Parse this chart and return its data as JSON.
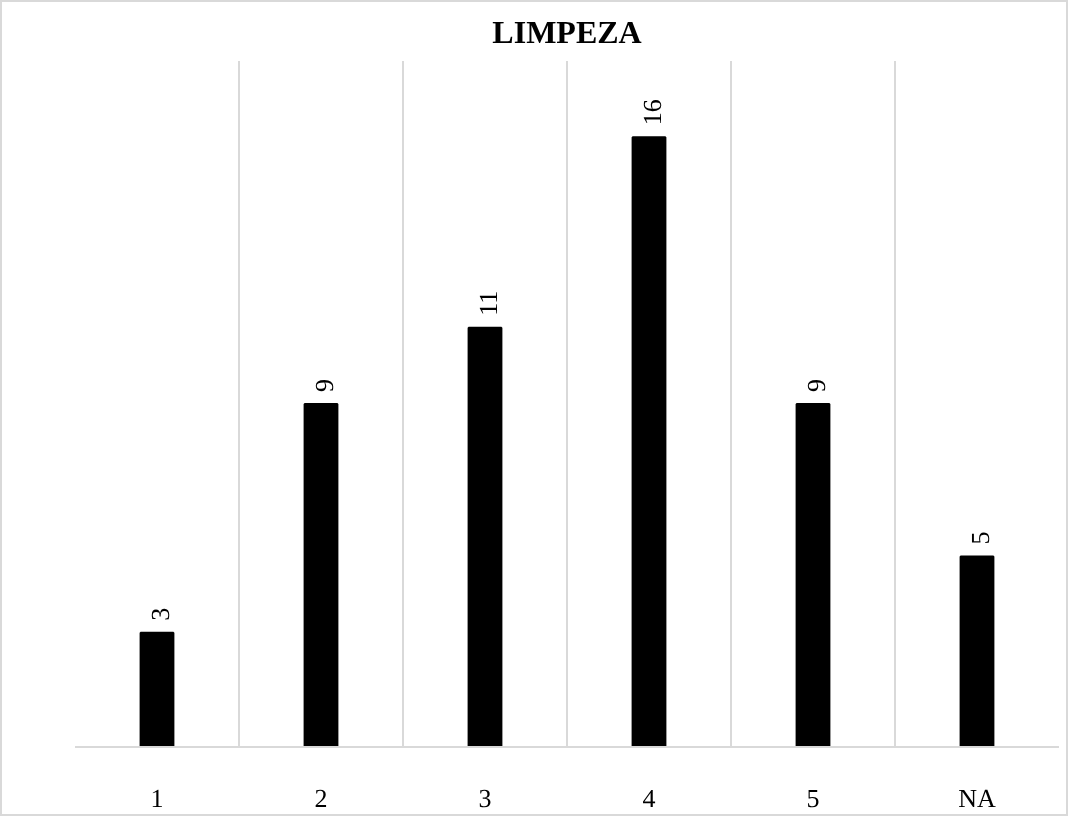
{
  "chart_data": {
    "type": "bar",
    "title": "LIMPEZA",
    "categories": [
      "1",
      "2",
      "3",
      "4",
      "5",
      "NA"
    ],
    "values": [
      3,
      9,
      11,
      16,
      9,
      5
    ],
    "color": "#000000",
    "ylim": [
      0,
      18
    ],
    "data_labels": true,
    "grid": "x"
  }
}
